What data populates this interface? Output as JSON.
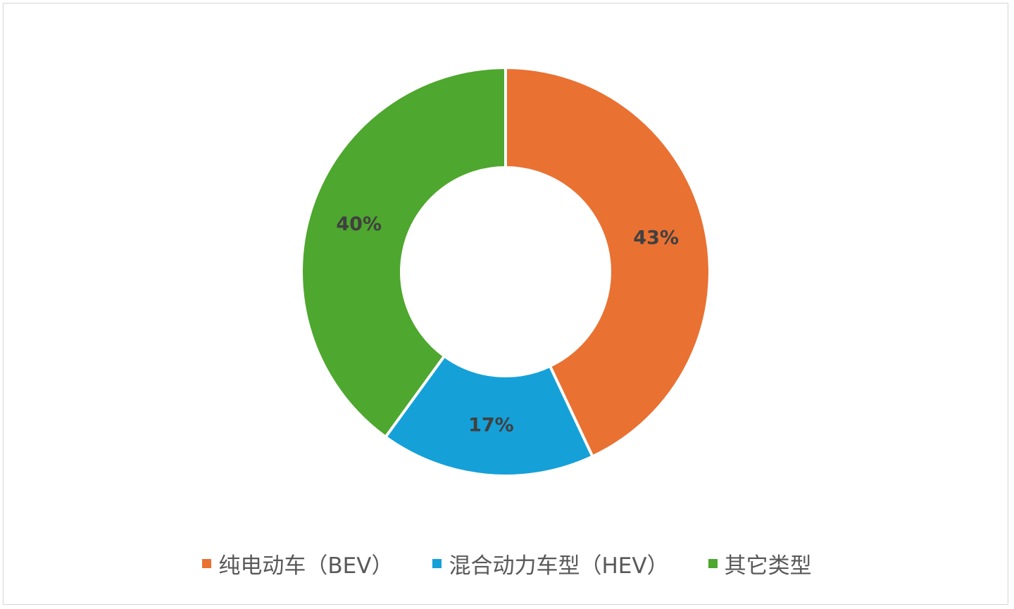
{
  "chart_data": {
    "type": "pie",
    "variant": "doughnut",
    "title": "",
    "series": [
      {
        "name": "纯电动车（BEV）",
        "value": 43,
        "label": "43%",
        "color": "#E97132"
      },
      {
        "name": "混合动力车型（HEV）",
        "value": 17,
        "label": "17%",
        "color": "#15A0D8"
      },
      {
        "name": "其它类型",
        "value": 40,
        "label": "40%",
        "color": "#4EA72E"
      }
    ],
    "legend_position": "bottom"
  }
}
